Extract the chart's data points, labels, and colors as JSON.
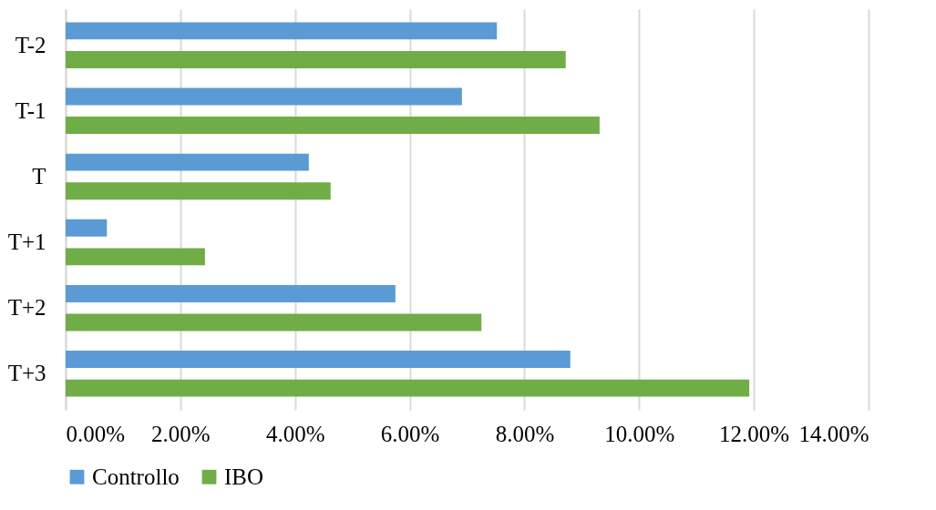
{
  "chart_data": {
    "type": "bar",
    "orientation": "horizontal",
    "categories": [
      "T-2",
      "T-1",
      "T",
      "T+1",
      "T+2",
      "T+3"
    ],
    "series": [
      {
        "name": "Controllo",
        "color": "#5b9bd5",
        "values": [
          7.52,
          6.91,
          4.24,
          0.72,
          5.75,
          8.8
        ]
      },
      {
        "name": "IBO",
        "color": "#70ad47",
        "values": [
          8.72,
          9.31,
          4.62,
          2.43,
          7.25,
          11.92
        ]
      }
    ],
    "xlim": [
      0,
      14
    ],
    "xticks": [
      {
        "value": 0,
        "label": "0.00%"
      },
      {
        "value": 2,
        "label": "2.00%"
      },
      {
        "value": 4,
        "label": "4.00%"
      },
      {
        "value": 6,
        "label": "6.00%"
      },
      {
        "value": 8,
        "label": "8.00%"
      },
      {
        "value": 10,
        "label": "10.00%"
      },
      {
        "value": 12,
        "label": "12.00%"
      },
      {
        "value": 14,
        "label": "14.00%"
      }
    ],
    "grid": "x",
    "legend": "bottom"
  }
}
